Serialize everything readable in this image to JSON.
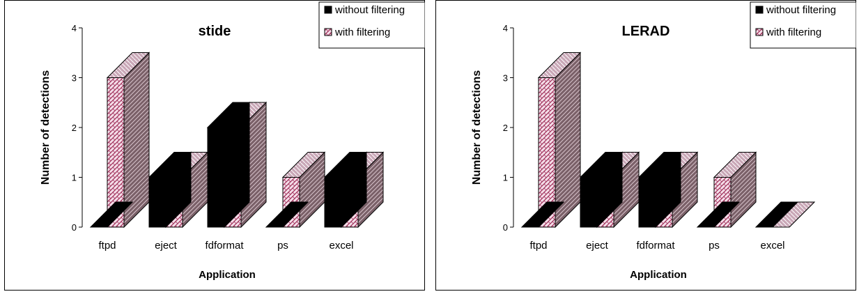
{
  "chart_data": [
    {
      "type": "bar",
      "title": "stide",
      "xlabel": "Application",
      "ylabel": "Number of detections",
      "ylim": [
        0,
        4
      ],
      "yticks": [
        "0",
        "1",
        "2",
        "3",
        "4"
      ],
      "categories": [
        "ftpd",
        "eject",
        "fdformat",
        "ps",
        "excel"
      ],
      "series": [
        {
          "name": "without filtering",
          "values": [
            0,
            1,
            2,
            0,
            1
          ]
        },
        {
          "name": "with filtering",
          "values": [
            3,
            1,
            2,
            1,
            1
          ]
        }
      ],
      "legend_position": "top-right",
      "grid": false
    },
    {
      "type": "bar",
      "title": "LERAD",
      "xlabel": "Application",
      "ylabel": "Number of detections",
      "ylim": [
        0,
        4
      ],
      "yticks": [
        "0",
        "1",
        "2",
        "3",
        "4"
      ],
      "categories": [
        "ftpd",
        "eject",
        "fdformat",
        "ps",
        "excel"
      ],
      "series": [
        {
          "name": "without filtering",
          "values": [
            0,
            1,
            1,
            0,
            0
          ]
        },
        {
          "name": "with filtering",
          "values": [
            3,
            1,
            1,
            1,
            0
          ]
        }
      ],
      "legend_position": "top-right",
      "grid": false
    }
  ],
  "colors": {
    "without_filtering": "#000000",
    "with_filtering_light": "#f4dde8",
    "with_filtering_pattern": "#a0305a",
    "with_filtering_side": "#7a6068"
  }
}
